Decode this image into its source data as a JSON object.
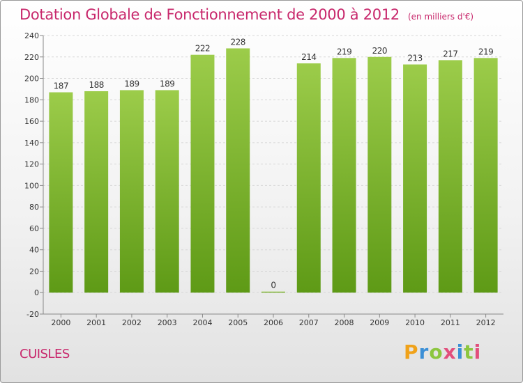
{
  "header": {
    "title": "Dotation Globale de Fonctionnement de 2000 à 2012",
    "subtitle": "(en milliers d'€)"
  },
  "footer": {
    "commune": "CUISLES",
    "brand": {
      "letters": [
        "P",
        "r",
        "o",
        "x",
        "i",
        "t",
        "i"
      ],
      "colors": [
        "#f0a21a",
        "#3b8fd6",
        "#8cc63f",
        "#e24e7c",
        "#3b8fd6",
        "#8cc63f",
        "#e24e7c"
      ]
    }
  },
  "colors": {
    "bar_top": "#9ccc4a",
    "bar_bottom": "#5e9a16",
    "grid": "#d6d6d6",
    "axis": "#888888",
    "text": "#333333"
  },
  "chart_data": {
    "type": "bar",
    "title": "Dotation Globale de Fonctionnement de 2000 à 2012",
    "subtitle": "(en milliers d'€)",
    "categories": [
      "2000",
      "2001",
      "2002",
      "2003",
      "2004",
      "2005",
      "2006",
      "2007",
      "2008",
      "2009",
      "2010",
      "2011",
      "2012"
    ],
    "values": [
      187,
      188,
      189,
      189,
      222,
      228,
      0,
      214,
      219,
      220,
      213,
      217,
      219
    ],
    "ylim": [
      -20,
      240
    ],
    "yticks": [
      -20,
      0,
      20,
      40,
      60,
      80,
      100,
      120,
      140,
      160,
      180,
      200,
      220,
      240
    ],
    "grid": true,
    "legend": "none"
  }
}
